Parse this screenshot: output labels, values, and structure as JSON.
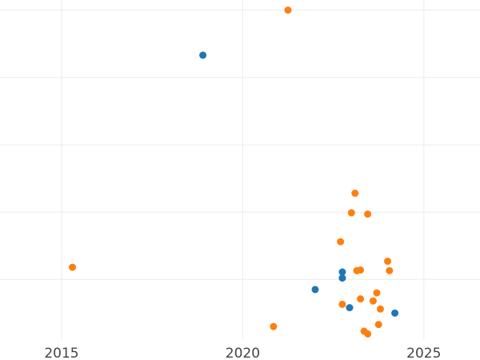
{
  "chart_data": {
    "type": "scatter",
    "title": "",
    "xlabel": "",
    "ylabel": "",
    "grid": true,
    "legend": "none",
    "xlim": [
      2013.3,
      2026.55
    ],
    "ylim": [
      -0.9,
      4.15
    ],
    "xticks": [
      2015,
      2020,
      2025
    ],
    "ygrid": [
      0,
      1,
      2,
      3,
      4
    ],
    "series": [
      {
        "color": "#1f77b4",
        "points": [
          {
            "x": 2018.9,
            "y": 3.33
          },
          {
            "x": 2022.0,
            "y": -0.15
          },
          {
            "x": 2022.75,
            "y": 0.11
          },
          {
            "x": 2022.75,
            "y": 0.02
          },
          {
            "x": 2022.95,
            "y": -0.42
          },
          {
            "x": 2024.2,
            "y": -0.5
          }
        ]
      },
      {
        "color": "#ff7f0e",
        "points": [
          {
            "x": 2015.3,
            "y": 0.18
          },
          {
            "x": 2020.85,
            "y": -0.7
          },
          {
            "x": 2021.25,
            "y": 4.0
          },
          {
            "x": 2022.7,
            "y": 0.56
          },
          {
            "x": 2022.75,
            "y": -0.37
          },
          {
            "x": 2023.0,
            "y": 0.99
          },
          {
            "x": 2023.1,
            "y": 1.28
          },
          {
            "x": 2023.15,
            "y": 0.13
          },
          {
            "x": 2023.25,
            "y": 0.14
          },
          {
            "x": 2023.25,
            "y": -0.29
          },
          {
            "x": 2023.35,
            "y": -0.77
          },
          {
            "x": 2023.45,
            "y": 0.97
          },
          {
            "x": 2023.45,
            "y": -0.81
          },
          {
            "x": 2023.6,
            "y": -0.32
          },
          {
            "x": 2023.7,
            "y": -0.2
          },
          {
            "x": 2023.75,
            "y": -0.67
          },
          {
            "x": 2023.8,
            "y": -0.44
          },
          {
            "x": 2024.0,
            "y": 0.27
          },
          {
            "x": 2024.05,
            "y": 0.13
          }
        ]
      }
    ]
  }
}
